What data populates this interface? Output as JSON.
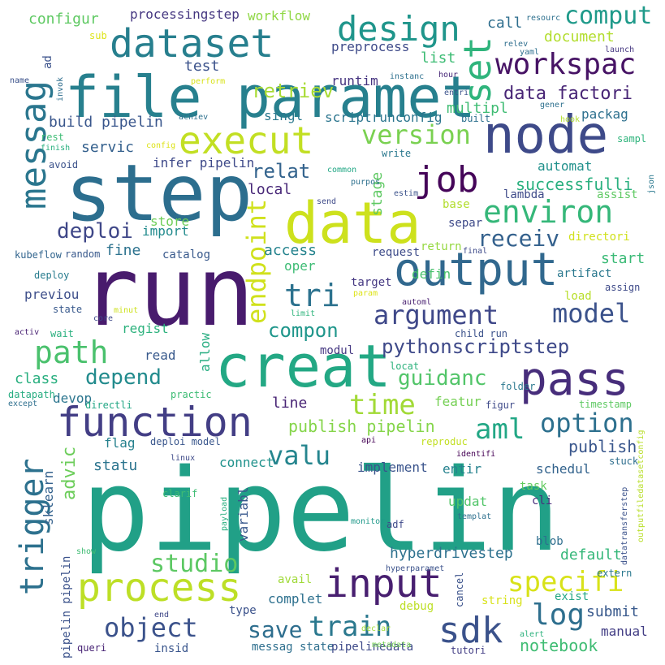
{
  "words": [
    {
      "text": "pipelin",
      "color": "#21a087"
    },
    {
      "text": "run",
      "color": "#481b6d"
    },
    {
      "text": "step",
      "color": "#2c6e8e"
    },
    {
      "text": "creat",
      "color": "#23a884"
    },
    {
      "text": "data",
      "color": "#cde11d"
    },
    {
      "text": "file paramet",
      "color": "#27808e"
    },
    {
      "text": "node",
      "color": "#3e4a89"
    },
    {
      "text": "output",
      "color": "#31688e"
    },
    {
      "text": "pass",
      "color": "#472d7b"
    },
    {
      "text": "function",
      "color": "#433e85"
    },
    {
      "text": "process",
      "color": "#bddf26"
    },
    {
      "text": "input",
      "color": "#481f70"
    },
    {
      "text": "dataset",
      "color": "#277f8e"
    },
    {
      "text": "execut",
      "color": "#c2df23"
    },
    {
      "text": "messag",
      "color": "#2a768e"
    },
    {
      "text": "trigger",
      "color": "#2d718e"
    },
    {
      "text": "job",
      "color": "#450559"
    },
    {
      "text": "sdk",
      "color": "#3b528b"
    },
    {
      "text": "design",
      "color": "#1f958b"
    },
    {
      "text": "set",
      "color": "#2fb47c"
    },
    {
      "text": "workspac",
      "color": "#471365"
    },
    {
      "text": "environ",
      "color": "#35b779"
    },
    {
      "text": "endpoint",
      "color": "#d0e11c"
    },
    {
      "text": "tri",
      "color": "#2c728e"
    },
    {
      "text": "argument",
      "color": "#3f4889"
    },
    {
      "text": "model",
      "color": "#3b528b"
    },
    {
      "text": "path",
      "color": "#4ac16d"
    },
    {
      "text": "aml",
      "color": "#22a785"
    },
    {
      "text": "option",
      "color": "#2d708e"
    },
    {
      "text": "time",
      "color": "#a2da37"
    },
    {
      "text": "specifi",
      "color": "#d8e219"
    },
    {
      "text": "log",
      "color": "#2e6f8e"
    },
    {
      "text": "train",
      "color": "#2a788e"
    },
    {
      "text": "object",
      "color": "#3b528b"
    },
    {
      "text": "valu",
      "color": "#25858e"
    },
    {
      "text": "studio",
      "color": "#5cc863"
    },
    {
      "text": "save",
      "color": "#2e6e8e"
    },
    {
      "text": "version",
      "color": "#7ad151"
    },
    {
      "text": "receiv",
      "color": "#34618d"
    },
    {
      "text": "deploi",
      "color": "#3f4788"
    },
    {
      "text": "depend",
      "color": "#228b8d"
    },
    {
      "text": "pythonscriptstep",
      "color": "#3e4989"
    },
    {
      "text": "compon",
      "color": "#1f968b"
    },
    {
      "text": "guidanc",
      "color": "#52c569"
    },
    {
      "text": "relat",
      "color": "#33638d"
    },
    {
      "text": "comput",
      "color": "#1f9a8a"
    },
    {
      "text": "retriev",
      "color": "#a8db34"
    },
    {
      "text": "data factori",
      "color": "#482576"
    },
    {
      "text": "successfulli",
      "color": "#2ab07f"
    },
    {
      "text": "publish pipelin",
      "color": "#85d54a"
    },
    {
      "text": "publish",
      "color": "#39568c"
    },
    {
      "text": "advic",
      "color": "#6ccd5a"
    },
    {
      "text": "hyperdrivestep",
      "color": "#2d718e"
    },
    {
      "text": "notebook",
      "color": "#3fbc73"
    },
    {
      "text": "submit",
      "color": "#38598c"
    },
    {
      "text": "default",
      "color": "#35b779"
    },
    {
      "text": "statu",
      "color": "#2b748e"
    },
    {
      "text": "build pipelin",
      "color": "#39568c"
    },
    {
      "text": "configur",
      "color": "#5ec962"
    },
    {
      "text": "test",
      "color": "#3b528b"
    },
    {
      "text": "document",
      "color": "#b2dd2d"
    },
    {
      "text": "call",
      "color": "#2e6e8e"
    },
    {
      "text": "workflow",
      "color": "#8fd744"
    },
    {
      "text": "processingstep",
      "color": "#453781"
    },
    {
      "text": "preprocess",
      "color": "#3e4a89"
    },
    {
      "text": "list",
      "color": "#3dbc74"
    },
    {
      "text": "runtim",
      "color": "#463480"
    },
    {
      "text": "multipl",
      "color": "#3fbc73"
    },
    {
      "text": "singl",
      "color": "#2a788e"
    },
    {
      "text": "scriptrunconfig",
      "color": "#2b758e"
    },
    {
      "text": "packag",
      "color": "#2d708e"
    },
    {
      "text": "servic",
      "color": "#34608d"
    },
    {
      "text": "infer pipelin",
      "color": "#3e4989"
    },
    {
      "text": "local",
      "color": "#482878"
    },
    {
      "text": "stage",
      "color": "#5ec962"
    },
    {
      "text": "automat",
      "color": "#21918c"
    },
    {
      "text": "access",
      "color": "#25838e"
    },
    {
      "text": "import",
      "color": "#228b8d"
    },
    {
      "text": "fine",
      "color": "#2c728e"
    },
    {
      "text": "store",
      "color": "#6ece58"
    },
    {
      "text": "start",
      "color": "#3aba76"
    },
    {
      "text": "artifact",
      "color": "#2a788e"
    },
    {
      "text": "regist",
      "color": "#2db27d"
    },
    {
      "text": "allow",
      "color": "#27ad81"
    },
    {
      "text": "read",
      "color": "#38598c"
    },
    {
      "text": "class",
      "color": "#29af7f"
    },
    {
      "text": "devop",
      "color": "#2b758e"
    },
    {
      "text": "previou",
      "color": "#3d4e8a"
    },
    {
      "text": "line",
      "color": "#482475"
    },
    {
      "text": "flag",
      "color": "#26818e"
    },
    {
      "text": "featur",
      "color": "#75d054"
    },
    {
      "text": "connect",
      "color": "#20928c"
    },
    {
      "text": "implement",
      "color": "#3a548c"
    },
    {
      "text": "entir",
      "color": "#26828e"
    },
    {
      "text": "schedul",
      "color": "#33638d"
    },
    {
      "text": "task",
      "color": "#63cb5f"
    },
    {
      "text": "cli",
      "color": "#472d7b"
    },
    {
      "text": "blob",
      "color": "#2e6e8e"
    },
    {
      "text": "updat",
      "color": "#52c569"
    },
    {
      "text": "variabl",
      "color": "#38588c"
    },
    {
      "text": "pipelin pipelin",
      "color": "#3b528b"
    },
    {
      "text": "sklearn",
      "color": "#34618d"
    },
    {
      "text": "complet",
      "color": "#2d708e"
    },
    {
      "text": "type",
      "color": "#3b528b"
    },
    {
      "text": "insid",
      "color": "#39558c"
    },
    {
      "text": "manual",
      "color": "#433e85"
    },
    {
      "text": "exist",
      "color": "#22a785"
    },
    {
      "text": "string",
      "color": "#d8e219"
    },
    {
      "text": "messag state",
      "color": "#2e6f8e"
    },
    {
      "text": "pipelinedata",
      "color": "#3e4a89"
    },
    {
      "text": "debug",
      "color": "#bddf26"
    },
    {
      "text": "avail",
      "color": "#a0da39"
    },
    {
      "text": "modul",
      "color": "#453882"
    },
    {
      "text": "oper",
      "color": "#3dbc74"
    },
    {
      "text": "defin",
      "color": "#4ac16d"
    },
    {
      "text": "target",
      "color": "#453882"
    },
    {
      "text": "request",
      "color": "#3e4c8a"
    },
    {
      "text": "return",
      "color": "#95d840"
    },
    {
      "text": "base",
      "color": "#b2dd2d"
    },
    {
      "text": "separ",
      "color": "#3e4a89"
    },
    {
      "text": "directori",
      "color": "#d0e11c"
    },
    {
      "text": "lambda",
      "color": "#3e4a89"
    },
    {
      "text": "assist",
      "color": "#5ec962"
    },
    {
      "text": "catalog",
      "color": "#38598c"
    },
    {
      "text": "kubeflow",
      "color": "#32658e"
    },
    {
      "text": "random",
      "color": "#38598c"
    },
    {
      "text": "deploy",
      "color": "#287c8e"
    },
    {
      "text": "state",
      "color": "#38598c"
    },
    {
      "text": "wait",
      "color": "#2ab07f"
    },
    {
      "text": "activ",
      "color": "#482173"
    },
    {
      "text": "core",
      "color": "#3e4989"
    },
    {
      "text": "minut",
      "color": "#cde11d"
    },
    {
      "text": "limit",
      "color": "#2fb47c"
    },
    {
      "text": "automl",
      "color": "#481f70"
    },
    {
      "text": "param",
      "color": "#dde318"
    },
    {
      "text": "load",
      "color": "#b8de29"
    },
    {
      "text": "assign",
      "color": "#3e4a89"
    },
    {
      "text": "child run",
      "color": "#3b528b"
    },
    {
      "text": "locat",
      "color": "#2db27d"
    },
    {
      "text": "folder",
      "color": "#2a788e"
    },
    {
      "text": "figur",
      "color": "#3e4a89"
    },
    {
      "text": "timestamp",
      "color": "#5ec962"
    },
    {
      "text": "practic",
      "color": "#3dbc74"
    },
    {
      "text": "directli",
      "color": "#22a785"
    },
    {
      "text": "datapath",
      "color": "#27ad81"
    },
    {
      "text": "except",
      "color": "#2e6f8e"
    },
    {
      "text": "deploi model",
      "color": "#39568c"
    },
    {
      "text": "api",
      "color": "#440154"
    },
    {
      "text": "reproduc",
      "color": "#c2df23"
    },
    {
      "text": "identifi",
      "color": "#440154"
    },
    {
      "text": "stuck",
      "color": "#2e6e8e"
    },
    {
      "text": "outputfiledatasetconfig",
      "color": "#b8de29"
    },
    {
      "text": "linux",
      "color": "#3e4a89"
    },
    {
      "text": "clarif",
      "color": "#3fbc73"
    },
    {
      "text": "payload",
      "color": "#29af7f"
    },
    {
      "text": "adf",
      "color": "#3e4989"
    },
    {
      "text": "templat",
      "color": "#2d708e"
    },
    {
      "text": "monitor",
      "color": "#1f998a"
    },
    {
      "text": "datatransferstep",
      "color": "#3b528b"
    },
    {
      "text": "extern",
      "color": "#2a788e"
    },
    {
      "text": "show",
      "color": "#3fbc73"
    },
    {
      "text": "hyperparamet",
      "color": "#3b528b"
    },
    {
      "text": "cancel",
      "color": "#3b528b"
    },
    {
      "text": "end",
      "color": "#3f4788"
    },
    {
      "text": "declar",
      "color": "#a0da39"
    },
    {
      "text": "queri",
      "color": "#482475"
    },
    {
      "text": "metadata",
      "color": "#75d054"
    },
    {
      "text": "tutori",
      "color": "#433e85"
    },
    {
      "text": "alert",
      "color": "#2db27d"
    },
    {
      "text": "sub",
      "color": "#dde318"
    },
    {
      "text": "ad",
      "color": "#3b528b"
    },
    {
      "text": "name",
      "color": "#3b528b"
    },
    {
      "text": "invok",
      "color": "#2e6e8e"
    },
    {
      "text": "perform",
      "color": "#d8e219"
    },
    {
      "text": "achiev",
      "color": "#2d708e"
    },
    {
      "text": "config",
      "color": "#dde318"
    },
    {
      "text": "rest",
      "color": "#3dbc74"
    },
    {
      "text": "finish",
      "color": "#2ab07f"
    },
    {
      "text": "avoid",
      "color": "#3b528b"
    },
    {
      "text": "built",
      "color": "#2d708e"
    },
    {
      "text": "hook",
      "color": "#b2dd2d"
    },
    {
      "text": "write",
      "color": "#2a788e"
    },
    {
      "text": "common",
      "color": "#22a785"
    },
    {
      "text": "purpos",
      "color": "#2d708e"
    },
    {
      "text": "send",
      "color": "#3e4a89"
    },
    {
      "text": "estim",
      "color": "#3b528b"
    },
    {
      "text": "final",
      "color": "#3e4a89"
    },
    {
      "text": "yaml",
      "color": "#2d708e"
    },
    {
      "text": "relev",
      "color": "#2e6e8e"
    },
    {
      "text": "launch",
      "color": "#453781"
    },
    {
      "text": "gener",
      "color": "#2d708e"
    },
    {
      "text": "resourc",
      "color": "#2d708e"
    },
    {
      "text": "instanc",
      "color": "#2d708e"
    },
    {
      "text": "hour",
      "color": "#482878"
    },
    {
      "text": "entri",
      "color": "#3b528b"
    },
    {
      "text": "sampl",
      "color": "#2fb47c"
    },
    {
      "text": "json",
      "color": "#2a788e"
    },
    {
      "text": "build",
      "color": "#2ab07f"
    },
    {
      "text": "creation",
      "color": "#dde318"
    }
  ]
}
